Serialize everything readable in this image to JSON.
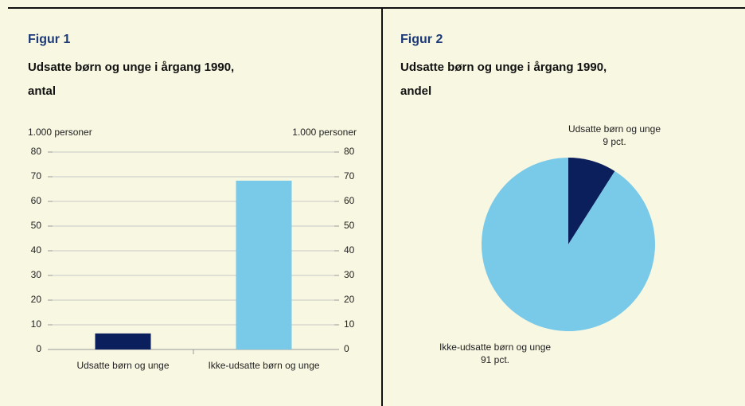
{
  "chart_data": [
    {
      "type": "bar",
      "title": "Figur 1",
      "subtitle": [
        "Udsatte børn og unge i årgang 1990,",
        "antal"
      ],
      "ylabel": "1.000 personer",
      "y2label": "1.000 personer",
      "categories": [
        "Udsatte børn og unge",
        "Ikke-udsatte børn og unge"
      ],
      "values": [
        6.5,
        68.4
      ],
      "colors": [
        "#0b1f5c",
        "#79c9e8"
      ],
      "ylim": [
        0,
        80
      ],
      "yticks": [
        0,
        10,
        20,
        30,
        40,
        50,
        60,
        70,
        80
      ],
      "y2lim": [
        0,
        80
      ],
      "y2ticks": [
        0,
        10,
        20,
        30,
        40,
        50,
        60,
        70,
        80
      ],
      "grid": true
    },
    {
      "type": "pie",
      "title": "Figur 2",
      "subtitle": [
        "Udsatte børn og unge i årgang 1990,",
        "andel"
      ],
      "categories": [
        "Udsatte børn og unge",
        "Ikke-udsatte børn og unge"
      ],
      "values": [
        9,
        91
      ],
      "value_labels": [
        "9 pct.",
        "91 pct."
      ],
      "colors": [
        "#0b1f5c",
        "#79c9e8"
      ]
    }
  ]
}
